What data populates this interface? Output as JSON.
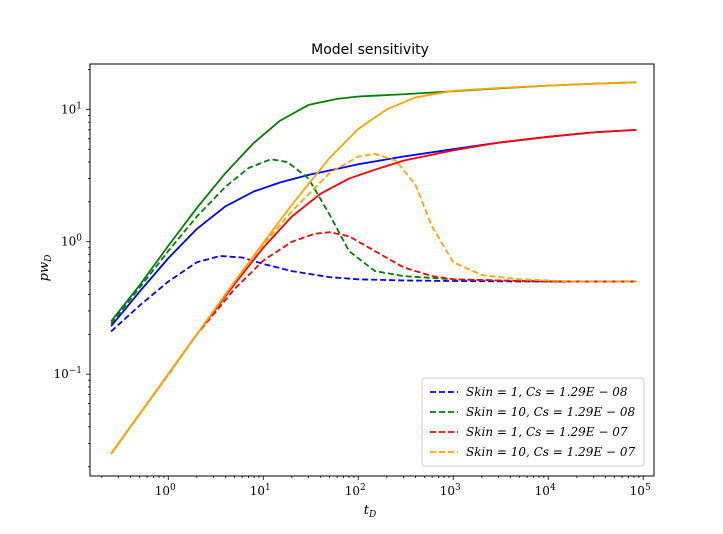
{
  "chart_data": {
    "type": "line",
    "title": "Model sensitivity",
    "xlabel": "t_D",
    "ylabel": "pw_D",
    "x_scale": "log",
    "y_scale": "log",
    "xlim": [
      0.15,
      130000
    ],
    "ylim": [
      0.017,
      22
    ],
    "x_ticks": [
      {
        "value": 1,
        "base": "10",
        "exp": "0"
      },
      {
        "value": 10,
        "base": "10",
        "exp": "1"
      },
      {
        "value": 100,
        "base": "10",
        "exp": "2"
      },
      {
        "value": 1000,
        "base": "10",
        "exp": "3"
      },
      {
        "value": 10000,
        "base": "10",
        "exp": "4"
      },
      {
        "value": 100000,
        "base": "10",
        "exp": "5"
      }
    ],
    "y_ticks": [
      {
        "value": 0.1,
        "base": "10",
        "exp": "−1"
      },
      {
        "value": 1,
        "base": "10",
        "exp": "0"
      },
      {
        "value": 10,
        "base": "10",
        "exp": "1"
      }
    ],
    "grid": false,
    "legend_position": "lower-right",
    "series": [
      {
        "name": "Skin = 1,  Cs = 1.29E − 08",
        "legend_label": "Skin = 1,  Cs = 1.29E − 08",
        "color": "#0000ff",
        "style": "dashed",
        "x": [
          0.25,
          0.5,
          1,
          2,
          3.5,
          6,
          10,
          20,
          50,
          100,
          300,
          1000,
          3000,
          10000,
          30000,
          85000
        ],
        "values": [
          0.21,
          0.33,
          0.5,
          0.7,
          0.78,
          0.76,
          0.68,
          0.6,
          0.54,
          0.52,
          0.51,
          0.505,
          0.502,
          0.5,
          0.5,
          0.5
        ]
      },
      {
        "name": "Skin = 1,  Cs = 1.29E − 08 (pwD)",
        "color": "#0000ff",
        "style": "solid",
        "x": [
          0.25,
          0.5,
          1,
          2,
          4,
          8,
          15,
          30,
          60,
          100,
          300,
          1000,
          3000,
          10000,
          30000,
          85000
        ],
        "values": [
          0.23,
          0.42,
          0.75,
          1.25,
          1.85,
          2.4,
          2.8,
          3.2,
          3.55,
          3.85,
          4.4,
          5.0,
          5.6,
          6.2,
          6.7,
          7.0
        ]
      },
      {
        "name": "Skin = 10, Cs = 1.29E − 08",
        "legend_label": "Skin = 10, Cs = 1.29E − 08",
        "color": "#008000",
        "style": "dashed",
        "x": [
          0.25,
          0.5,
          1,
          2,
          4,
          7,
          12,
          18,
          30,
          50,
          80,
          150,
          300,
          1000,
          3000,
          10000,
          85000
        ],
        "values": [
          0.24,
          0.45,
          0.85,
          1.55,
          2.6,
          3.6,
          4.2,
          4.0,
          3.0,
          1.6,
          0.85,
          0.6,
          0.55,
          0.52,
          0.51,
          0.5,
          0.5
        ]
      },
      {
        "name": "Skin = 10, Cs = 1.29E − 08 (pwD)",
        "color": "#008000",
        "style": "solid",
        "x": [
          0.25,
          0.5,
          1,
          2,
          4,
          8,
          15,
          30,
          60,
          100,
          300,
          1000,
          3000,
          10000,
          30000,
          85000
        ],
        "values": [
          0.25,
          0.47,
          0.93,
          1.8,
          3.3,
          5.6,
          8.2,
          10.8,
          12.0,
          12.5,
          13.0,
          13.7,
          14.4,
          15.1,
          15.6,
          16.0
        ]
      },
      {
        "name": "Skin = 1,  Cs = 1.29E − 07",
        "legend_label": "Skin = 1,  Cs = 1.29E − 07",
        "color": "#ff0000",
        "style": "dashed",
        "x": [
          0.25,
          0.5,
          1,
          2,
          5,
          10,
          20,
          35,
          50,
          80,
          150,
          300,
          600,
          1000,
          3000,
          10000,
          85000
        ],
        "values": [
          0.025,
          0.05,
          0.099,
          0.2,
          0.44,
          0.72,
          1.0,
          1.15,
          1.18,
          1.1,
          0.85,
          0.64,
          0.55,
          0.52,
          0.51,
          0.5,
          0.5
        ]
      },
      {
        "name": "Skin = 1,  Cs = 1.29E − 07 (pwD)",
        "color": "#ff0000",
        "style": "solid",
        "x": [
          0.25,
          0.5,
          1,
          2,
          5,
          10,
          20,
          40,
          80,
          150,
          300,
          1000,
          3000,
          10000,
          30000,
          85000
        ],
        "values": [
          0.025,
          0.05,
          0.1,
          0.2,
          0.48,
          0.9,
          1.55,
          2.3,
          3.0,
          3.5,
          4.1,
          4.9,
          5.6,
          6.2,
          6.7,
          7.0
        ]
      },
      {
        "name": "Skin = 10, Cs = 1.29E − 07",
        "legend_label": "Skin = 10, Cs = 1.29E − 07",
        "color": "#ffa500",
        "style": "dashed",
        "x": [
          0.25,
          0.5,
          1,
          2,
          5,
          10,
          20,
          50,
          100,
          150,
          250,
          400,
          600,
          1000,
          2000,
          5000,
          20000,
          85000
        ],
        "values": [
          0.025,
          0.05,
          0.1,
          0.2,
          0.5,
          0.95,
          1.7,
          3.3,
          4.4,
          4.6,
          4.1,
          2.7,
          1.3,
          0.7,
          0.56,
          0.52,
          0.5,
          0.5
        ]
      },
      {
        "name": "Skin = 10, Cs = 1.29E − 07 (pwD)",
        "color": "#ffa500",
        "style": "solid",
        "x": [
          0.25,
          0.5,
          1,
          2,
          5,
          10,
          20,
          50,
          100,
          200,
          400,
          1000,
          3000,
          10000,
          30000,
          85000
        ],
        "values": [
          0.025,
          0.05,
          0.1,
          0.2,
          0.5,
          0.98,
          1.9,
          4.3,
          7.1,
          10.0,
          12.3,
          13.8,
          14.5,
          15.1,
          15.6,
          16.0
        ]
      }
    ]
  }
}
